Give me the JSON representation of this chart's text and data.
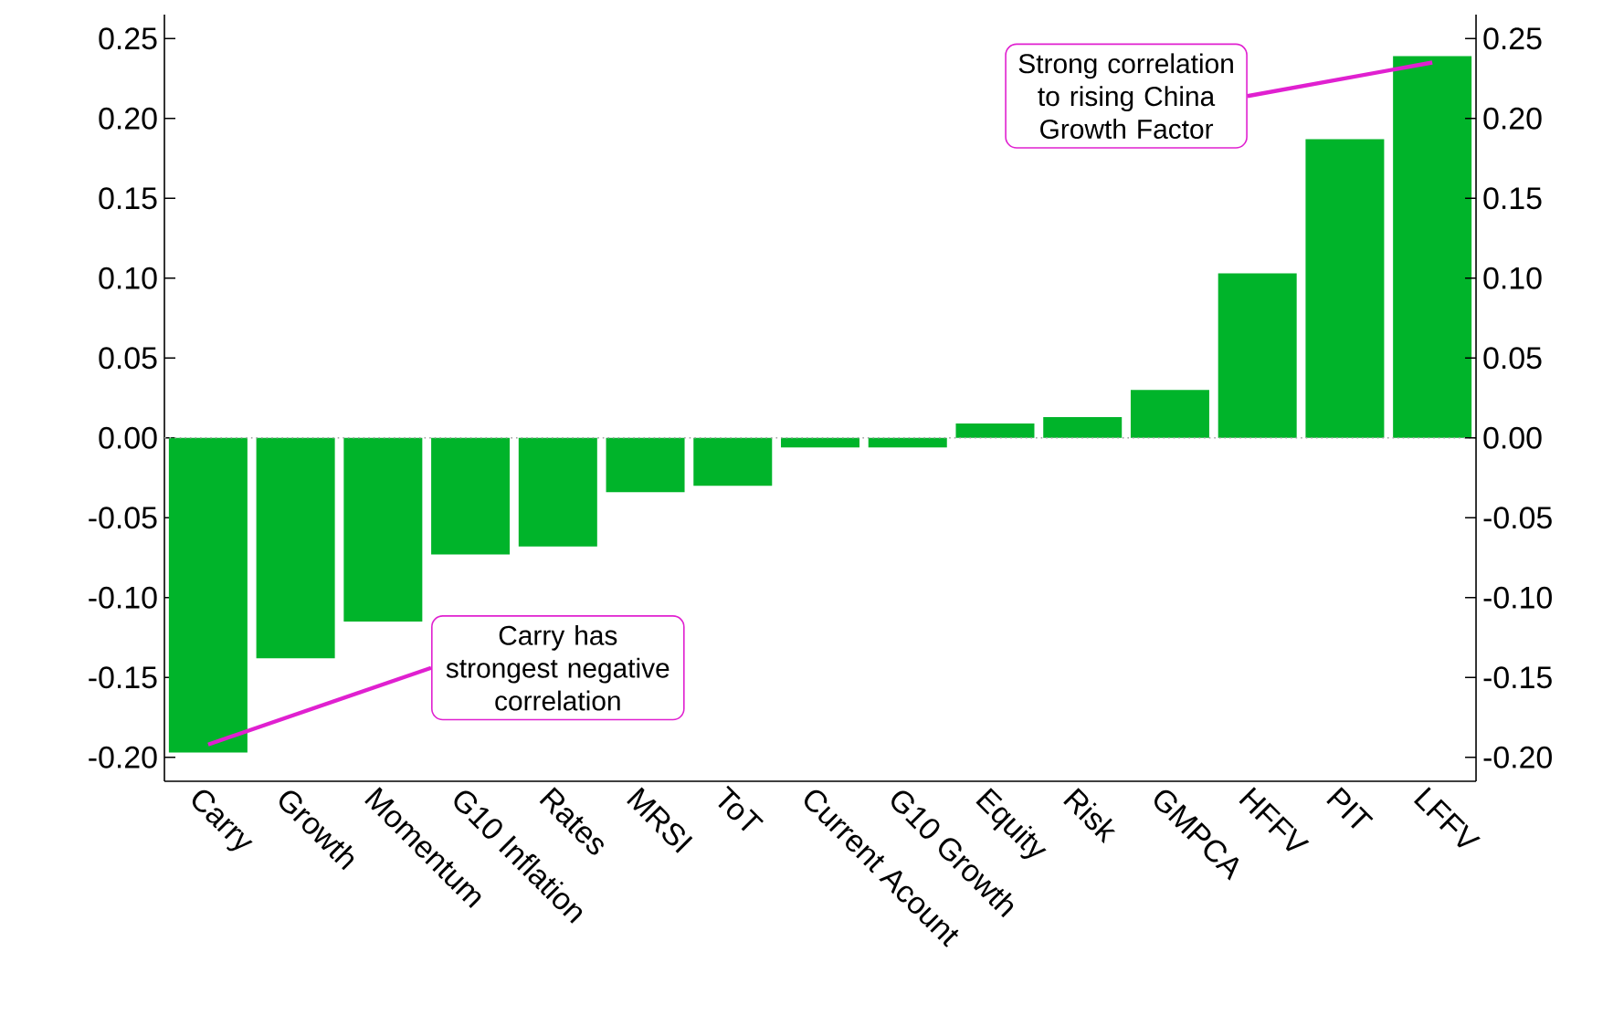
{
  "chart_data": {
    "type": "bar",
    "color": "#00b42a",
    "categories": [
      "Carry",
      "Growth",
      "Momentum",
      "G10 Inflation",
      "Rates",
      "MRSI",
      "ToT",
      "Current Acount",
      "G10 Growth",
      "Equity",
      "Risk",
      "GMPCA",
      "HFFV",
      "PIT",
      "LFFV"
    ],
    "values": [
      -0.197,
      -0.138,
      -0.115,
      -0.073,
      -0.068,
      -0.034,
      -0.03,
      -0.006,
      -0.006,
      0.009,
      0.013,
      0.03,
      0.103,
      0.187,
      0.239
    ],
    "ylim": [
      -0.215,
      0.265
    ],
    "yticks": [
      {
        "value": -0.2,
        "label": "-0.20"
      },
      {
        "value": -0.15,
        "label": "-0.15"
      },
      {
        "value": -0.1,
        "label": "-0.10"
      },
      {
        "value": -0.05,
        "label": "-0.05"
      },
      {
        "value": 0,
        "label": "0.00"
      },
      {
        "value": 0.05,
        "label": "0.05"
      },
      {
        "value": 0.1,
        "label": "0.10"
      },
      {
        "value": 0.15,
        "label": "0.15"
      },
      {
        "value": 0.2,
        "label": "0.20"
      },
      {
        "value": 0.25,
        "label": "0.25"
      }
    ],
    "y2lim": [
      -0.215,
      0.265
    ],
    "y2ticks": [
      {
        "value": -0.2,
        "label": "-0.20"
      },
      {
        "value": -0.15,
        "label": "-0.15"
      },
      {
        "value": -0.1,
        "label": "-0.10"
      },
      {
        "value": -0.05,
        "label": "-0.05"
      },
      {
        "value": 0,
        "label": "0.00"
      },
      {
        "value": 0.05,
        "label": "0.05"
      },
      {
        "value": 0.1,
        "label": "0.10"
      },
      {
        "value": 0.15,
        "label": "0.15"
      },
      {
        "value": 0.2,
        "label": "0.20"
      },
      {
        "value": 0.25,
        "label": "0.25"
      }
    ],
    "ref_lines": [
      {
        "axis": "y",
        "value": 0,
        "color": "#a0a0a0",
        "line_style": "dotted"
      }
    ],
    "annotations": [
      {
        "text": "Carry has strongest negative correlation",
        "x": "Carry",
        "y": -0.192
      },
      {
        "text": "Strong correlation to rising China Growth Factor",
        "x": "LFFV",
        "y": 0.235
      }
    ]
  }
}
